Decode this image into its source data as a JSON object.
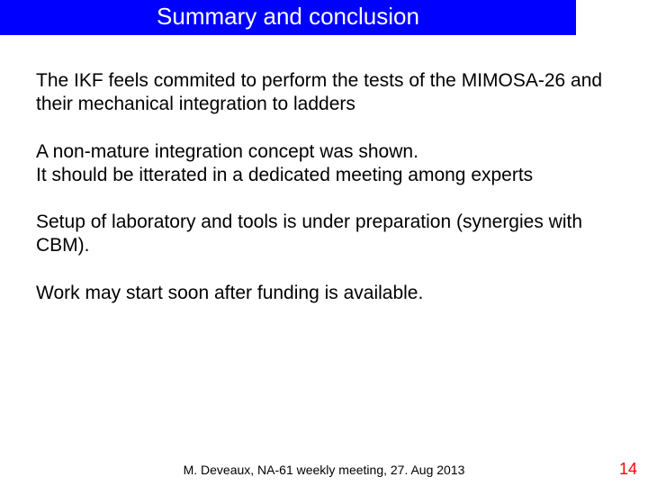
{
  "slide": {
    "title": "Summary and conclusion",
    "title_bg": "#0000ff",
    "title_color": "#ffffff",
    "title_fontsize": 26,
    "background": "#ffffff",
    "paragraphs": [
      "The IKF feels commited to perform the tests of the MIMOSA-26 and their mechanical integration to ladders",
      "A non-mature integration concept was shown.\nIt should be itterated in a dedicated meeting among experts",
      "Setup of laboratory and tools is under preparation (synergies with CBM).",
      "Work may start soon after funding is available."
    ],
    "body_fontsize": 21,
    "body_color": "#000000",
    "footer": "M. Deveaux, NA-61 weekly meeting, 27. Aug 2013",
    "footer_fontsize": 14,
    "footer_color": "#000000",
    "page_number": "14",
    "page_number_color": "#ff0000",
    "page_number_fontsize": 18
  }
}
